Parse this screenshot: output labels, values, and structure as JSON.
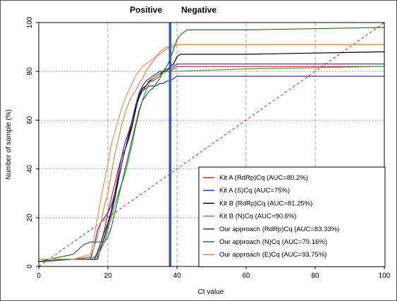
{
  "chart_data": {
    "type": "line",
    "title": "",
    "xlabel": "Ct value",
    "ylabel": "Number of sample (%)",
    "xlim": [
      0,
      100
    ],
    "ylim": [
      0,
      100
    ],
    "xticks": [
      0,
      20,
      40,
      60,
      80,
      100
    ],
    "yticks": [
      0,
      20,
      40,
      60,
      80,
      100
    ],
    "grid": true,
    "legend_position": "bottom-right",
    "annotations": {
      "positive_label": "Positive",
      "negative_label": "Negative",
      "cutoff_x": 38
    },
    "reference_line": {
      "from": [
        0,
        0
      ],
      "to": [
        100,
        100
      ],
      "color": "#b03030",
      "style": "dashed"
    },
    "series": [
      {
        "name": "Kit A (RdRp)Cq (AUC=80.2%)",
        "color": "#e02020",
        "x": [
          0,
          10,
          16,
          17,
          19,
          20,
          21,
          22,
          23,
          24,
          25,
          26,
          27,
          28,
          29,
          30,
          31,
          32,
          33,
          34,
          35,
          36,
          37,
          38,
          39,
          40,
          50,
          100
        ],
        "y": [
          2,
          3,
          3,
          5,
          15,
          22,
          28,
          34,
          40,
          45,
          48,
          52,
          57,
          64,
          70,
          72,
          74,
          76,
          76,
          77,
          78,
          80,
          80,
          80,
          81,
          82,
          82,
          82
        ]
      },
      {
        "name": "Kit A (S)Cq (AUC=75%)",
        "color": "#3030c0",
        "x": [
          0,
          10,
          15,
          16,
          17,
          18,
          19,
          20,
          21,
          22,
          23,
          24,
          25,
          26,
          27,
          28,
          29,
          30,
          31,
          32,
          33,
          34,
          35,
          36,
          37,
          38,
          39,
          40,
          60,
          100
        ],
        "y": [
          2,
          3,
          3,
          8,
          15,
          18,
          20,
          22,
          25,
          30,
          38,
          45,
          51,
          55,
          60,
          65,
          69,
          72,
          73,
          74,
          74,
          74,
          75,
          75,
          76,
          76,
          77,
          78,
          78,
          78
        ]
      },
      {
        "name": "Kit B (RdRp)Cq (AUC=81.25%)",
        "color": "#000000",
        "x": [
          0,
          10,
          17,
          18,
          19,
          20,
          21,
          22,
          23,
          24,
          25,
          26,
          27,
          28,
          29,
          30,
          31,
          32,
          33,
          34,
          35,
          36,
          37,
          38,
          39,
          40,
          41,
          42,
          50,
          60,
          100
        ],
        "y": [
          2,
          3,
          3,
          8,
          12,
          17,
          22,
          28,
          35,
          42,
          48,
          53,
          58,
          64,
          70,
          73,
          74,
          76,
          77,
          78,
          79,
          80,
          80,
          82,
          83,
          86,
          87,
          87,
          87,
          87,
          88
        ]
      },
      {
        "name": "Kit B (N)Cq (AUC=90.6%)",
        "color": "#40a040",
        "x": [
          0,
          10,
          17,
          18,
          19,
          20,
          21,
          22,
          23,
          24,
          25,
          26,
          27,
          28,
          29,
          30,
          31,
          32,
          33,
          34,
          35,
          36,
          37,
          38,
          39,
          40,
          60,
          100
        ],
        "y": [
          2,
          3,
          4,
          7,
          10,
          15,
          20,
          25,
          30,
          34,
          38,
          44,
          50,
          57,
          63,
          68,
          72,
          75,
          77,
          78,
          79,
          79,
          80,
          80,
          80,
          80,
          81,
          82
        ]
      },
      {
        "name": "Our approach (RdRp)Cq (AUC=83.33%)",
        "color": "#3a2a80",
        "x": [
          0,
          10,
          16,
          17,
          18,
          19,
          20,
          21,
          22,
          23,
          24,
          25,
          26,
          27,
          28,
          29,
          30,
          31,
          32,
          33,
          34,
          35,
          36,
          37,
          38,
          39,
          40,
          60,
          100
        ],
        "y": [
          2,
          3,
          3,
          6,
          10,
          14,
          18,
          23,
          30,
          36,
          42,
          48,
          54,
          60,
          66,
          71,
          74,
          76,
          77,
          78,
          79,
          80,
          80,
          81,
          81,
          82,
          83,
          83,
          83
        ]
      },
      {
        "name": "Our approach (N)Cq (AUC=79.16%)",
        "color": "#2a6a2a",
        "x": [
          0,
          10,
          13,
          15,
          18,
          19,
          20,
          21,
          22,
          23,
          24,
          25,
          26,
          27,
          28,
          29,
          30,
          31,
          32,
          33,
          34,
          35,
          36,
          37,
          38,
          39,
          40,
          41,
          42,
          43,
          45,
          50,
          60,
          100
        ],
        "y": [
          2,
          5,
          9,
          10,
          10,
          10,
          12,
          16,
          22,
          28,
          34,
          40,
          46,
          52,
          58,
          64,
          68,
          70,
          72,
          73,
          75,
          77,
          80,
          82,
          85,
          89,
          93,
          95,
          96,
          97,
          97,
          97,
          97,
          98
        ]
      },
      {
        "name": "Our approach (E)Cq (AUC=93.75%)",
        "color": "#c8903a",
        "x": [
          0,
          10,
          15,
          16,
          17,
          18,
          19,
          20,
          21,
          22,
          23,
          24,
          25,
          26,
          27,
          28,
          29,
          30,
          31,
          32,
          33,
          34,
          35,
          36,
          37,
          38,
          39,
          40,
          60,
          100
        ],
        "y": [
          3,
          3,
          4,
          8,
          12,
          18,
          25,
          30,
          38,
          46,
          52,
          58,
          63,
          67,
          70,
          72,
          75,
          77,
          80,
          82,
          84,
          86,
          88,
          89,
          90,
          90,
          91,
          91,
          91,
          91
        ]
      }
    ],
    "extra_lines": [
      {
        "color": "#f08a6a",
        "x": [
          0,
          10,
          15,
          16,
          17,
          18,
          19,
          20,
          21,
          22,
          23,
          24,
          25,
          26,
          27,
          28,
          29,
          30,
          31,
          32,
          33,
          34,
          35,
          36,
          37,
          38,
          39,
          40,
          60,
          100
        ],
        "y": [
          3,
          3,
          5,
          12,
          20,
          28,
          35,
          42,
          50,
          55,
          60,
          65,
          69,
          72,
          75,
          78,
          80,
          82,
          83,
          84,
          85,
          86,
          87,
          88,
          89,
          90,
          90,
          91,
          91,
          91
        ]
      }
    ]
  }
}
